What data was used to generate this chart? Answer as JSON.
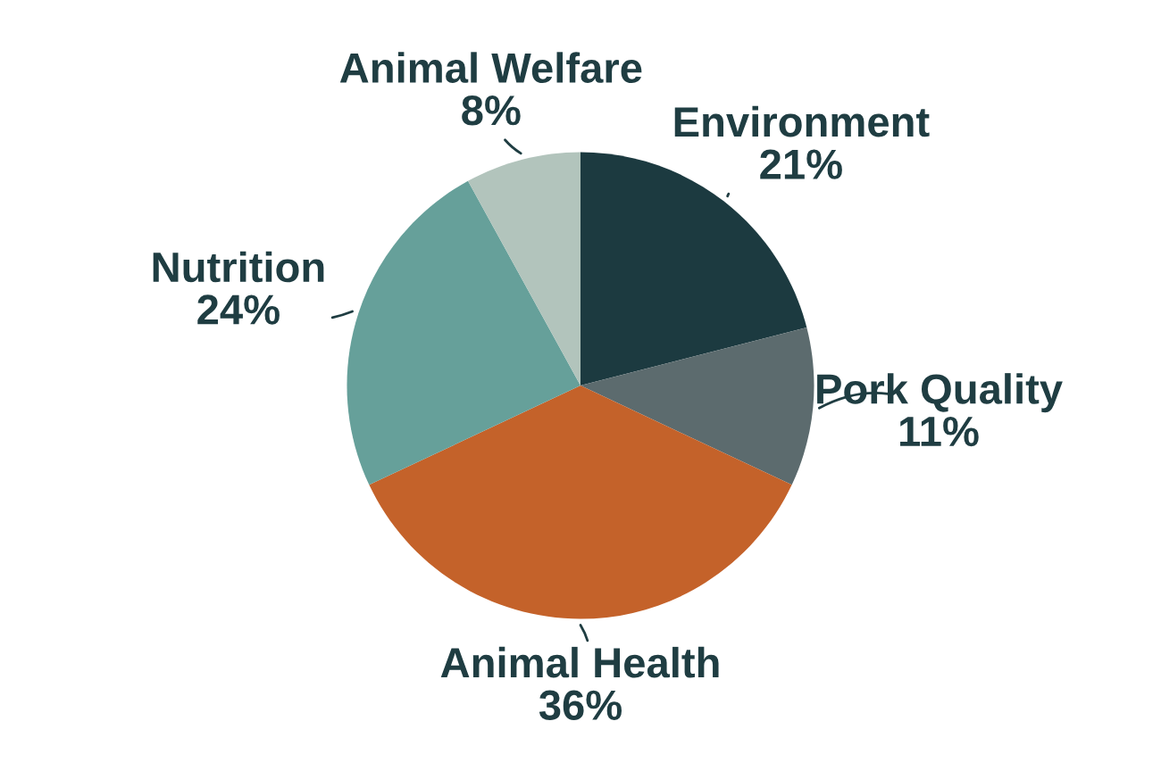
{
  "chart_data": {
    "type": "pie",
    "categories": [
      "Environment",
      "Pork Quality",
      "Animal Health",
      "Nutrition",
      "Animal Welfare"
    ],
    "values": [
      21,
      11,
      36,
      24,
      8
    ],
    "value_labels": [
      "21%",
      "11%",
      "36%",
      "24%",
      "8%"
    ],
    "colors": [
      "#1c3a40",
      "#5c6b6e",
      "#c4622a",
      "#66a09a",
      "#b2c4bc"
    ],
    "legend": false
  }
}
